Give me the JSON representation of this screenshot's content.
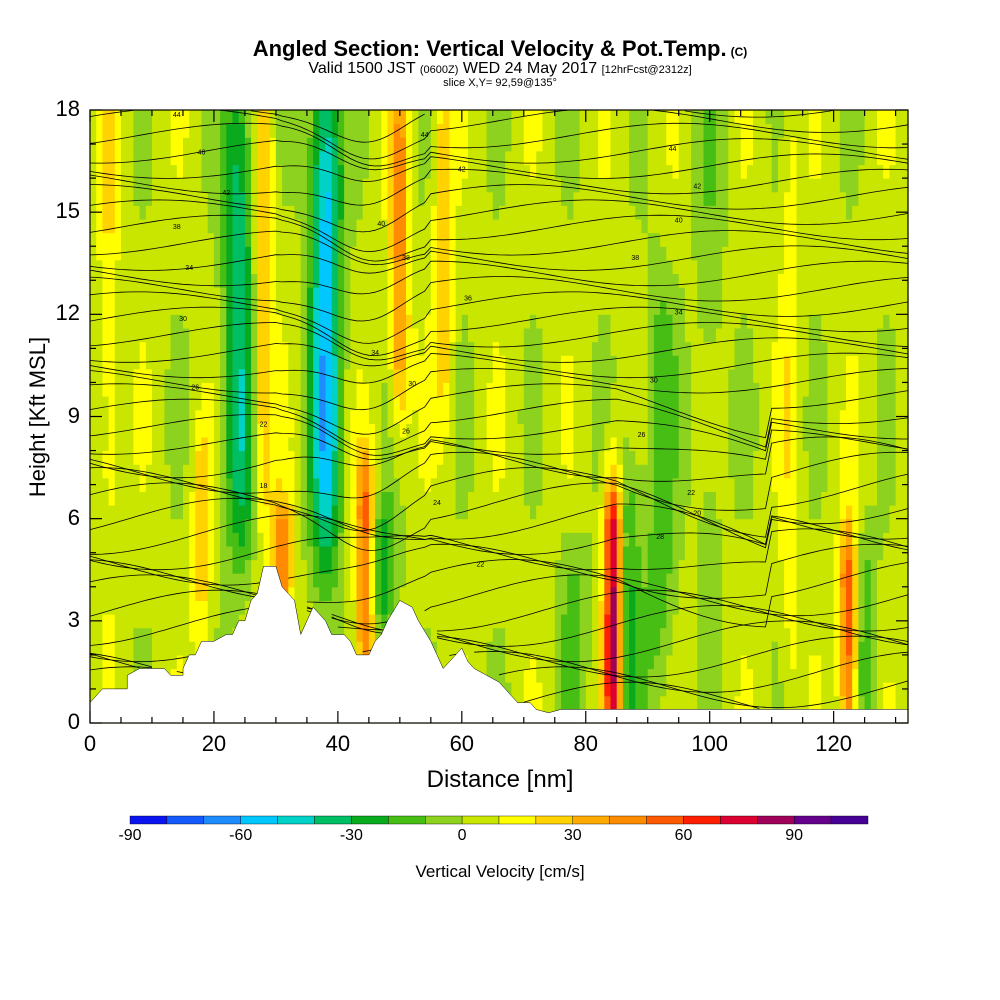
{
  "header": {
    "title": "Angled Section: Vertical Velocity & Pot.Temp.",
    "title_suffix": "(C)",
    "valid_prefix": "Valid 1500 JST",
    "valid_zulu": "(0600Z)",
    "valid_date": "WED 24 May 2017",
    "valid_fcst": "[12hrFcst@2312z]",
    "slice": "slice X,Y= 92,59@135°"
  },
  "chart_data": {
    "type": "heatmap",
    "xlabel": "Distance [nm]",
    "ylabel": "Height [Kft MSL]",
    "xlim": [
      0,
      132
    ],
    "ylim": [
      0,
      18
    ],
    "x_ticks": [
      0,
      20,
      40,
      60,
      80,
      100,
      120
    ],
    "y_ticks": [
      0,
      3,
      6,
      9,
      12,
      15,
      18
    ],
    "colorbar": {
      "label": "Vertical Velocity [cm/s]",
      "min": -90,
      "max": 110,
      "step": 10,
      "ticks": [
        -90,
        -60,
        -30,
        0,
        30,
        60,
        90
      ],
      "colors": [
        "#0a14f0",
        "#145aff",
        "#1e8cff",
        "#00c8ff",
        "#00d2c8",
        "#00be64",
        "#0aaa1e",
        "#46be14",
        "#8cd21e",
        "#c8e600",
        "#ffff00",
        "#ffd200",
        "#ffaa00",
        "#ff8c00",
        "#ff5a00",
        "#ff1e00",
        "#dc0032",
        "#a0005a",
        "#64008c",
        "#460096"
      ]
    },
    "terrain_kft": [
      [
        0,
        0.6
      ],
      [
        2,
        1.0
      ],
      [
        6,
        1.0
      ],
      [
        6,
        1.4
      ],
      [
        8,
        1.6
      ],
      [
        12,
        1.6
      ],
      [
        13,
        1.4
      ],
      [
        15,
        1.4
      ],
      [
        15,
        1.6
      ],
      [
        16,
        2.0
      ],
      [
        17,
        2.0
      ],
      [
        18,
        2.4
      ],
      [
        20,
        2.4
      ],
      [
        22,
        2.6
      ],
      [
        23,
        2.6
      ],
      [
        24,
        3.0
      ],
      [
        25,
        3.0
      ],
      [
        26,
        3.6
      ],
      [
        27,
        3.8
      ],
      [
        28,
        4.6
      ],
      [
        30,
        4.6
      ],
      [
        31,
        4.0
      ],
      [
        33,
        3.6
      ],
      [
        34,
        2.6
      ],
      [
        35,
        3.0
      ],
      [
        36,
        3.4
      ],
      [
        38,
        3.0
      ],
      [
        39,
        2.6
      ],
      [
        41,
        2.6
      ],
      [
        42,
        2.4
      ],
      [
        43,
        2.0
      ],
      [
        45,
        2.0
      ],
      [
        46,
        2.4
      ],
      [
        47,
        2.6
      ],
      [
        48,
        3.0
      ],
      [
        50,
        3.6
      ],
      [
        52,
        3.4
      ],
      [
        53,
        3.0
      ],
      [
        55,
        2.4
      ],
      [
        56,
        2.0
      ],
      [
        57,
        1.6
      ],
      [
        58,
        1.8
      ],
      [
        59,
        2.0
      ],
      [
        60,
        2.2
      ],
      [
        61,
        1.8
      ],
      [
        62,
        1.6
      ],
      [
        64,
        1.4
      ],
      [
        66,
        1.2
      ],
      [
        67,
        1.0
      ],
      [
        68,
        0.8
      ],
      [
        69,
        0.6
      ],
      [
        71,
        0.6
      ],
      [
        72,
        0.4
      ],
      [
        74,
        0.3
      ],
      [
        76,
        0.4
      ],
      [
        132,
        0.4
      ]
    ],
    "updrafts": [
      {
        "x": 84.5,
        "z0": 0.4,
        "z1": 6.5,
        "w": 100
      },
      {
        "x": 122.5,
        "z0": 0.4,
        "z1": 5.0,
        "w": 70
      },
      {
        "x": 44.5,
        "z0": 2.0,
        "z1": 7.0,
        "w": 55
      },
      {
        "x": 31,
        "z0": 3.5,
        "z1": 6.0,
        "w": 45
      },
      {
        "x": 50,
        "z0": 10,
        "z1": 18,
        "w": 40
      },
      {
        "x": 28,
        "z0": 7,
        "z1": 18,
        "w": 30
      },
      {
        "x": 57,
        "z0": 10,
        "z1": 18,
        "w": 25
      },
      {
        "x": 18,
        "z0": 3,
        "z1": 8,
        "w": 20
      },
      {
        "x": 3,
        "z0": 6,
        "z1": 18,
        "w": 15
      },
      {
        "x": 113,
        "z0": 1,
        "z1": 18,
        "w": 12
      }
    ],
    "downdrafts": [
      {
        "x": 38,
        "z0": 6,
        "z1": 18,
        "w": -60
      },
      {
        "x": 24,
        "z0": 6,
        "z1": 18,
        "w": -40
      },
      {
        "x": 47,
        "z0": 3,
        "z1": 6,
        "w": -30
      },
      {
        "x": 86,
        "z0": 0.4,
        "z1": 7,
        "w": -35
      },
      {
        "x": 92,
        "z0": 2,
        "z1": 12,
        "w": -20
      },
      {
        "x": 78,
        "z0": 0.4,
        "z1": 5,
        "w": -15
      },
      {
        "x": 124,
        "z0": 0.4,
        "z1": 5,
        "w": -25
      },
      {
        "x": 100,
        "z0": 4,
        "z1": 18,
        "w": -10
      }
    ],
    "theta_labels": [
      {
        "x": 14,
        "z": 17.8,
        "text": "44"
      },
      {
        "x": 18,
        "z": 16.7,
        "text": "46"
      },
      {
        "x": 22,
        "z": 15.5,
        "text": "42"
      },
      {
        "x": 14,
        "z": 14.5,
        "text": "38"
      },
      {
        "x": 16,
        "z": 13.3,
        "text": "34"
      },
      {
        "x": 15,
        "z": 11.8,
        "text": "30"
      },
      {
        "x": 17,
        "z": 9.8,
        "text": "26"
      },
      {
        "x": 28,
        "z": 8.7,
        "text": "22"
      },
      {
        "x": 28,
        "z": 6.9,
        "text": "18"
      },
      {
        "x": 54,
        "z": 17.2,
        "text": "44"
      },
      {
        "x": 60,
        "z": 16.2,
        "text": "42"
      },
      {
        "x": 47,
        "z": 14.6,
        "text": "40"
      },
      {
        "x": 51,
        "z": 13.6,
        "text": "38"
      },
      {
        "x": 61,
        "z": 12.4,
        "text": "36"
      },
      {
        "x": 46,
        "z": 10.8,
        "text": "34"
      },
      {
        "x": 52,
        "z": 9.9,
        "text": "30"
      },
      {
        "x": 51,
        "z": 8.5,
        "text": "26"
      },
      {
        "x": 56,
        "z": 6.4,
        "text": "24"
      },
      {
        "x": 63,
        "z": 4.6,
        "text": "22"
      },
      {
        "x": 94,
        "z": 16.8,
        "text": "44"
      },
      {
        "x": 98,
        "z": 15.7,
        "text": "42"
      },
      {
        "x": 95,
        "z": 14.7,
        "text": "40"
      },
      {
        "x": 88,
        "z": 13.6,
        "text": "38"
      },
      {
        "x": 95,
        "z": 12.0,
        "text": "34"
      },
      {
        "x": 91,
        "z": 10.0,
        "text": "30"
      },
      {
        "x": 89,
        "z": 8.4,
        "text": "26"
      },
      {
        "x": 97,
        "z": 6.7,
        "text": "22"
      },
      {
        "x": 98,
        "z": 6.1,
        "text": "20"
      },
      {
        "x": 92,
        "z": 5.4,
        "text": "28"
      }
    ]
  }
}
